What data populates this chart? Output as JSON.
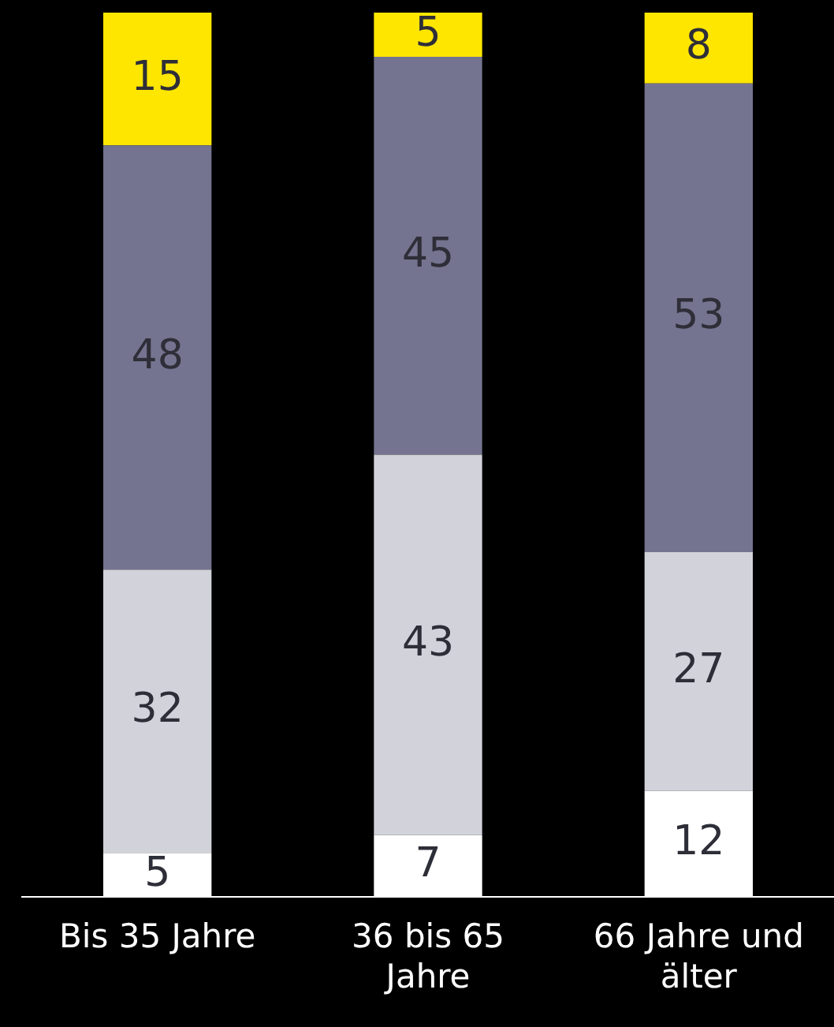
{
  "chart_data": {
    "type": "bar",
    "stacked": true,
    "categories": [
      "Bis 35 Jahre",
      "36 bis 65 Jahre",
      "66 Jahre und älter"
    ],
    "series": [
      {
        "color": "#ffffff",
        "values": [
          5,
          7,
          12
        ]
      },
      {
        "color": "#d2d2da",
        "values": [
          32,
          43,
          27
        ]
      },
      {
        "color": "#747490",
        "values": [
          48,
          45,
          53
        ]
      },
      {
        "color": "#ffe600",
        "values": [
          15,
          5,
          8
        ]
      }
    ],
    "ylim": [
      0,
      100
    ],
    "data_labels": true,
    "tick_labels": "x",
    "grid": false,
    "legend": false
  }
}
